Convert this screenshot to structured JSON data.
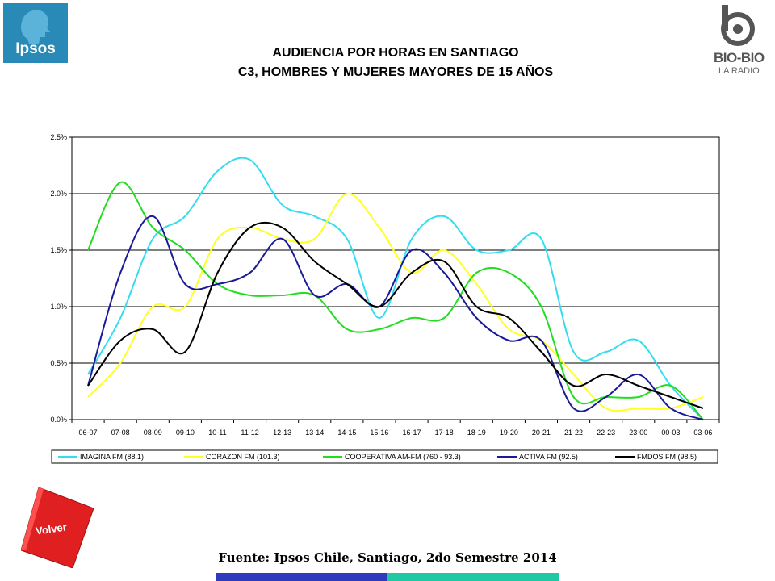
{
  "header": {
    "ipsos_logo_text": "Ipsos",
    "biobio_logo_text": "BIO-BIO",
    "biobio_logo_sub": "LA RADIO",
    "title_line1": "AUDIENCIA POR HORAS EN SANTIAGO",
    "title_line2": "C3, HOMBRES Y MUJERES MAYORES DE 15 AÑOS"
  },
  "footer": {
    "volver_label": "Volver",
    "source": "Fuente: Ipsos Chile, Santiago, 2do Semestre 2014"
  },
  "colors": {
    "ipsos_blue": "#2a8ab7",
    "volver_red": "#e02020",
    "bar_blue": "#2f3bbd",
    "bar_teal": "#1fc9a4"
  },
  "chart_data": {
    "type": "line",
    "title": "",
    "xlabel": "",
    "ylabel": "",
    "ylim": [
      0,
      2.5
    ],
    "yticks": [
      "0.0%",
      "0.5%",
      "1.0%",
      "1.5%",
      "2.0%",
      "2.5%"
    ],
    "grid": "horizontal",
    "legend_position": "bottom",
    "categories": [
      "06-07",
      "07-08",
      "08-09",
      "09-10",
      "10-11",
      "11-12",
      "12-13",
      "13-14",
      "14-15",
      "15-16",
      "16-17",
      "17-18",
      "18-19",
      "19-20",
      "20-21",
      "21-22",
      "22-23",
      "23-00",
      "00-03",
      "03-06"
    ],
    "series": [
      {
        "name": "IMAGINA FM (88.1)",
        "color": "#33ddee",
        "values": [
          0.4,
          0.9,
          1.6,
          1.8,
          2.2,
          2.3,
          1.9,
          1.8,
          1.6,
          0.9,
          1.6,
          1.8,
          1.5,
          1.5,
          1.6,
          0.6,
          0.6,
          0.7,
          0.3,
          0.0
        ]
      },
      {
        "name": "CORAZON FM (101.3)",
        "color": "#ffff22",
        "values": [
          0.2,
          0.5,
          1.0,
          1.0,
          1.6,
          1.7,
          1.6,
          1.6,
          2.0,
          1.7,
          1.3,
          1.5,
          1.2,
          0.8,
          0.7,
          0.4,
          0.1,
          0.1,
          0.1,
          0.2
        ]
      },
      {
        "name": "COOPERATIVA AM-FM (760 - 93.3)",
        "color": "#22dd22",
        "values": [
          1.5,
          2.1,
          1.7,
          1.5,
          1.2,
          1.1,
          1.1,
          1.1,
          0.8,
          0.8,
          0.9,
          0.9,
          1.3,
          1.3,
          1.0,
          0.2,
          0.2,
          0.2,
          0.3,
          0.0
        ]
      },
      {
        "name": "ACTIVA FM (92.5)",
        "color": "#1a1a99",
        "values": [
          0.3,
          1.3,
          1.8,
          1.2,
          1.2,
          1.3,
          1.6,
          1.1,
          1.2,
          1.0,
          1.5,
          1.3,
          0.9,
          0.7,
          0.7,
          0.1,
          0.2,
          0.4,
          0.1,
          0.0
        ]
      },
      {
        "name": "FMDOS FM (98.5)",
        "color": "#000000",
        "values": [
          0.3,
          0.7,
          0.8,
          0.6,
          1.3,
          1.7,
          1.7,
          1.4,
          1.2,
          1.0,
          1.3,
          1.4,
          1.0,
          0.9,
          0.6,
          0.3,
          0.4,
          0.3,
          0.2,
          0.1
        ]
      }
    ]
  }
}
